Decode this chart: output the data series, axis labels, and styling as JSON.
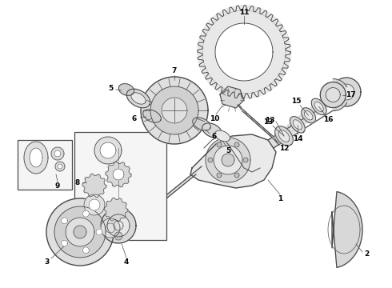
{
  "bg_color": "#ffffff",
  "lc": "#4a4a4a",
  "lw": 0.8,
  "figsize": [
    4.9,
    3.6
  ],
  "dpi": 100
}
